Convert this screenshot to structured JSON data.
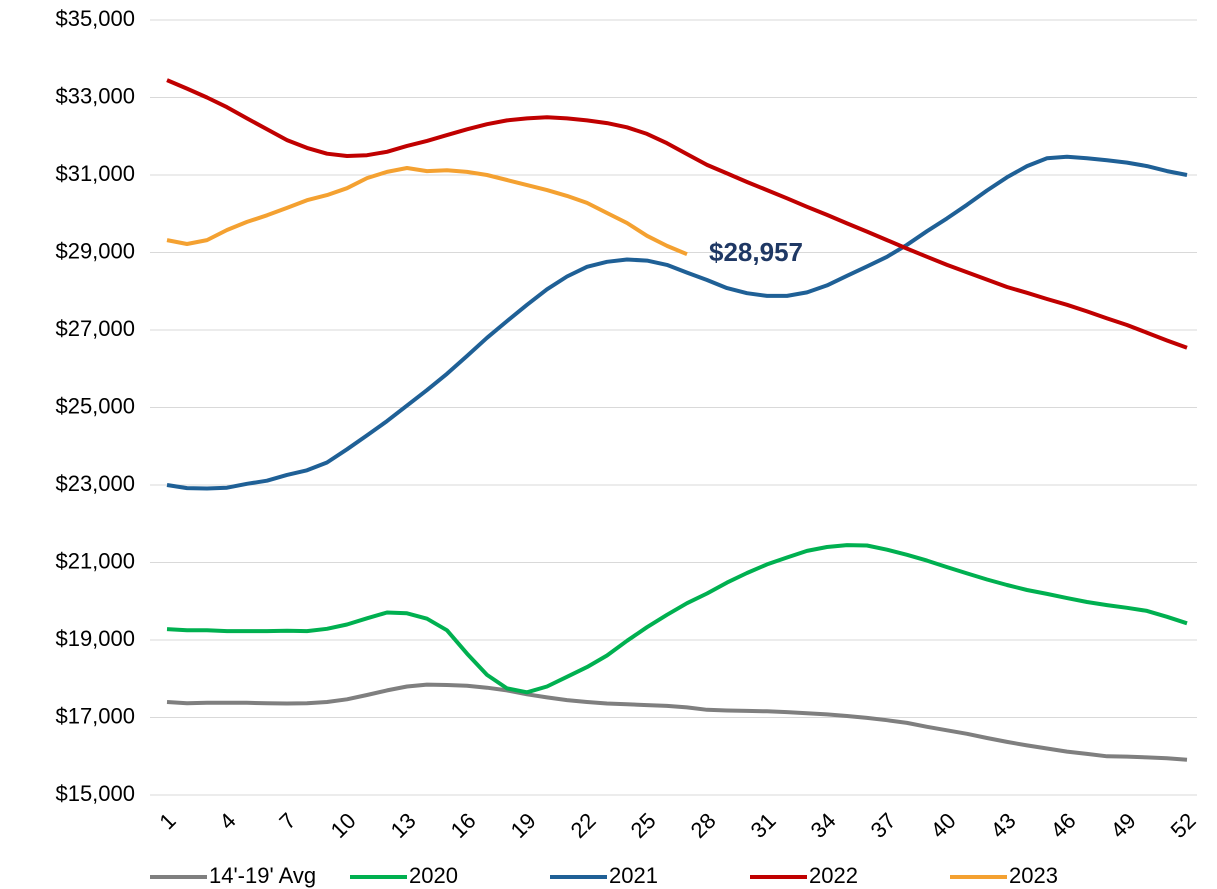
{
  "chart_data": {
    "type": "line",
    "x": [
      1,
      2,
      3,
      4,
      5,
      6,
      7,
      8,
      9,
      10,
      11,
      12,
      13,
      14,
      15,
      16,
      17,
      18,
      19,
      20,
      21,
      22,
      23,
      24,
      25,
      26,
      27,
      28,
      29,
      30,
      31,
      32,
      33,
      34,
      35,
      36,
      37,
      38,
      39,
      40,
      41,
      42,
      43,
      44,
      45,
      46,
      47,
      48,
      49,
      50,
      51,
      52
    ],
    "xlim": [
      1,
      52
    ],
    "xticks": [
      1,
      4,
      7,
      10,
      13,
      16,
      19,
      22,
      25,
      28,
      31,
      34,
      37,
      40,
      43,
      46,
      49,
      52
    ],
    "ylim": [
      15000,
      35000
    ],
    "yticks": [
      {
        "value": 15000,
        "label": "$15,000"
      },
      {
        "value": 17000,
        "label": "$17,000"
      },
      {
        "value": 19000,
        "label": "$19,000"
      },
      {
        "value": 21000,
        "label": "$21,000"
      },
      {
        "value": 23000,
        "label": "$23,000"
      },
      {
        "value": 25000,
        "label": "$25,000"
      },
      {
        "value": 27000,
        "label": "$27,000"
      },
      {
        "value": 29000,
        "label": "$29,000"
      },
      {
        "value": 31000,
        "label": "$31,000"
      },
      {
        "value": 33000,
        "label": "$33,000"
      },
      {
        "value": 35000,
        "label": "$35,000"
      }
    ],
    "grid": true,
    "legend": "bottom",
    "series": [
      {
        "name": "14'-19' Avg",
        "color": "#7f7f7f",
        "values": [
          17400,
          17370,
          17380,
          17380,
          17380,
          17370,
          17360,
          17370,
          17400,
          17470,
          17580,
          17700,
          17800,
          17850,
          17840,
          17820,
          17770,
          17700,
          17600,
          17520,
          17450,
          17400,
          17360,
          17340,
          17320,
          17300,
          17260,
          17200,
          17180,
          17170,
          17160,
          17140,
          17110,
          17080,
          17040,
          16990,
          16930,
          16860,
          16760,
          16670,
          16580,
          16470,
          16370,
          16280,
          16200,
          16120,
          16060,
          16000,
          15990,
          15970,
          15950,
          15910
        ]
      },
      {
        "name": "2020",
        "color": "#00b050",
        "values": [
          19280,
          19250,
          19250,
          19230,
          19230,
          19230,
          19240,
          19230,
          19290,
          19400,
          19560,
          19710,
          19690,
          19550,
          19250,
          18650,
          18100,
          17750,
          17650,
          17800,
          18050,
          18300,
          18600,
          18980,
          19330,
          19650,
          19950,
          20200,
          20480,
          20730,
          20950,
          21130,
          21300,
          21400,
          21450,
          21440,
          21330,
          21200,
          21050,
          20880,
          20720,
          20560,
          20420,
          20290,
          20190,
          20080,
          19980,
          19900,
          19830,
          19750,
          19600,
          19430
        ]
      },
      {
        "name": "2021",
        "color": "#1f6096",
        "values": [
          23000,
          22920,
          22910,
          22930,
          23030,
          23110,
          23260,
          23380,
          23580,
          23920,
          24280,
          24650,
          25050,
          25450,
          25870,
          26330,
          26800,
          27230,
          27650,
          28050,
          28380,
          28630,
          28760,
          28820,
          28790,
          28680,
          28480,
          28290,
          28080,
          27950,
          27880,
          27880,
          27970,
          28150,
          28400,
          28640,
          28890,
          29200,
          29550,
          29880,
          30230,
          30600,
          30940,
          31230,
          31430,
          31470,
          31430,
          31380,
          31320,
          31230,
          31100,
          31000
        ]
      },
      {
        "name": "2022",
        "color": "#c00000",
        "values": [
          33450,
          33230,
          33000,
          32750,
          32460,
          32180,
          31900,
          31700,
          31550,
          31490,
          31510,
          31600,
          31750,
          31880,
          32030,
          32180,
          32310,
          32410,
          32460,
          32490,
          32460,
          32410,
          32340,
          32230,
          32060,
          31820,
          31540,
          31260,
          31040,
          30820,
          30610,
          30400,
          30180,
          29970,
          29750,
          29540,
          29320,
          29100,
          28890,
          28680,
          28490,
          28300,
          28110,
          27960,
          27800,
          27650,
          27480,
          27300,
          27130,
          26930,
          26730,
          26540
        ]
      },
      {
        "name": "2023",
        "color": "#f4a131",
        "values": [
          29320,
          29220,
          29320,
          29580,
          29790,
          29960,
          30150,
          30350,
          30480,
          30660,
          30920,
          31080,
          31180,
          31100,
          31120,
          31080,
          31000,
          30870,
          30740,
          30610,
          30460,
          30280,
          30020,
          29760,
          29430,
          29170,
          28957,
          null,
          null,
          null,
          null,
          null,
          null,
          null,
          null,
          null,
          null,
          null,
          null,
          null,
          null,
          null,
          null,
          null,
          null,
          null,
          null,
          null,
          null,
          null,
          null,
          null
        ],
        "value_labels": [
          null,
          null,
          null,
          null,
          null,
          null,
          null,
          null,
          null,
          null,
          null,
          null,
          null,
          null,
          null,
          null,
          null,
          null,
          null,
          null,
          null,
          null,
          null,
          null,
          null,
          null,
          "$28,957",
          null,
          null,
          null,
          null,
          null,
          null,
          null,
          null,
          null,
          null,
          null,
          null,
          null,
          null,
          null,
          null,
          null,
          null,
          null,
          null,
          null,
          null,
          null,
          null,
          null
        ]
      }
    ]
  }
}
